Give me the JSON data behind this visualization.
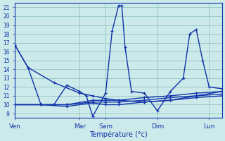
{
  "background_color": "#cceaea",
  "grid_color": "#88bbbb",
  "line_color": "#1133aa",
  "xlabel": "Température (°c)",
  "yticks": [
    9,
    10,
    11,
    12,
    13,
    14,
    15,
    16,
    17,
    18,
    19,
    20,
    21
  ],
  "day_labels": [
    "Ven",
    "Mar",
    "Sam",
    "Dim",
    "Lun"
  ],
  "day_positions": [
    0,
    10,
    14,
    22,
    30
  ],
  "xlim": [
    0,
    32
  ],
  "ylim": [
    8.5,
    21.5
  ],
  "series": [
    {
      "x": [
        0,
        2,
        4,
        6,
        8,
        10,
        11,
        12,
        14,
        15,
        16,
        16.5,
        17,
        18,
        20,
        22,
        24,
        26,
        27,
        28,
        29,
        30,
        32
      ],
      "y": [
        16.7,
        14.2,
        10.0,
        10.0,
        12.2,
        11.5,
        11.0,
        8.7,
        11.3,
        18.3,
        21.2,
        21.2,
        16.5,
        11.5,
        11.3,
        9.3,
        11.5,
        13.0,
        18.0,
        18.5,
        15.0,
        12.0,
        11.8
      ]
    },
    {
      "x": [
        0,
        2,
        6,
        10,
        12,
        14,
        16,
        20,
        24,
        28,
        32
      ],
      "y": [
        16.7,
        14.2,
        12.5,
        11.3,
        11.0,
        10.7,
        10.5,
        10.3,
        10.5,
        11.0,
        11.5
      ]
    },
    {
      "x": [
        0,
        4,
        8,
        12,
        14,
        16,
        20,
        24,
        28,
        32
      ],
      "y": [
        10.0,
        10.0,
        10.0,
        10.5,
        10.5,
        10.5,
        10.8,
        11.0,
        11.3,
        11.5
      ]
    },
    {
      "x": [
        0,
        4,
        8,
        12,
        14,
        16,
        20,
        24,
        28,
        32
      ],
      "y": [
        10.0,
        10.0,
        10.0,
        10.3,
        10.3,
        10.3,
        10.5,
        10.8,
        11.0,
        11.2
      ]
    },
    {
      "x": [
        0,
        4,
        8,
        12,
        14,
        16,
        20,
        24,
        28,
        32
      ],
      "y": [
        10.0,
        10.0,
        9.8,
        10.2,
        10.0,
        10.0,
        10.3,
        10.5,
        10.8,
        11.0
      ]
    }
  ]
}
